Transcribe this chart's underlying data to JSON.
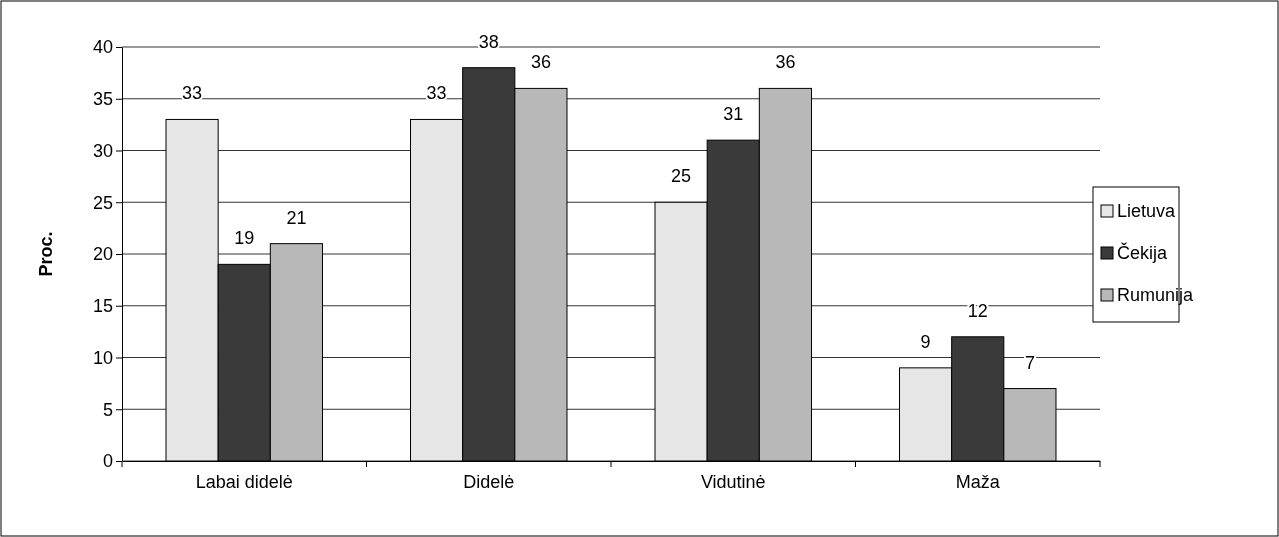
{
  "chart_data": {
    "type": "bar",
    "ylabel": "Proc.",
    "categories": [
      "Labai didelė",
      "Didelė",
      "Vidutinė",
      "Maža"
    ],
    "series": [
      {
        "name": "Lietuva",
        "color": "#e6e6e6",
        "values": [
          33,
          33,
          25,
          9
        ]
      },
      {
        "name": "Čekija",
        "color": "#3a3a3a",
        "values": [
          19,
          38,
          31,
          12
        ]
      },
      {
        "name": "Rumunija",
        "color": "#b8b8b8",
        "values": [
          21,
          36,
          36,
          7
        ]
      }
    ],
    "ylim": [
      0,
      40
    ],
    "yticks": [
      0,
      5,
      10,
      15,
      20,
      25,
      30,
      35,
      40
    ],
    "grid": "y",
    "legend": "right",
    "data_labels": true
  }
}
